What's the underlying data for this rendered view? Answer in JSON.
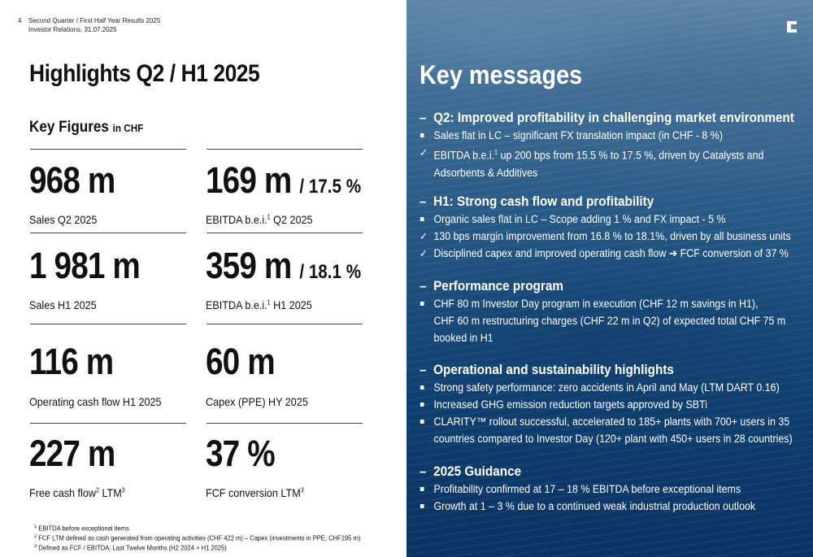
{
  "header": {
    "page_number": "4",
    "line1": "Second Quarter / First Half Year Results 2025",
    "line2": "Investor Relations, 31.07.2025"
  },
  "left": {
    "title": "Highlights Q2 / H1 2025",
    "key_figures_label": "Key Figures",
    "key_figures_unit": "in CHF",
    "figures": [
      {
        "value": "968 m",
        "pct": "",
        "caption": "Sales Q2 2025",
        "sup": "",
        "caption_after": ""
      },
      {
        "value": "169 m",
        "pct": "/ 17.5 %",
        "caption": "EBITDA b.e.i.",
        "sup": "1",
        "caption_after": " Q2 2025"
      },
      {
        "value": "1 981 m",
        "pct": "",
        "caption": "Sales H1 2025",
        "sup": "",
        "caption_after": ""
      },
      {
        "value": "359 m",
        "pct": "/ 18.1 %",
        "caption": "EBITDA b.e.i.",
        "sup": "1",
        "caption_after": "  H1 2025"
      },
      {
        "value": "116 m",
        "pct": "",
        "caption": "Operating cash flow H1 2025",
        "sup": "",
        "caption_after": ""
      },
      {
        "value": "60 m",
        "pct": "",
        "caption": "Capex (PPE) HY 2025",
        "sup": "",
        "caption_after": ""
      },
      {
        "value": "227 m",
        "pct": "",
        "caption": "Free cash flow",
        "sup": "2",
        "caption_after": " LTM",
        "sup2": "3"
      },
      {
        "value": "37 %",
        "pct": "",
        "caption": "FCF conversion LTM",
        "sup": "3",
        "caption_after": ""
      }
    ],
    "footnotes": [
      {
        "num": "1",
        "text": " EBITDA before exceptional items"
      },
      {
        "num": "2",
        "text": " FCF LTM defined as cash generated from operating activities (CHF 422 m) – Capex (investments in PPE, CHF195 m)"
      },
      {
        "num": "3",
        "text": " Defined as FCF / EBITDA; Last Twelve Months (H2 2024 + H1 2025)"
      }
    ]
  },
  "right": {
    "title": "Key messages",
    "sections": [
      {
        "title": "Q2: Improved profitability in challenging market environment",
        "items": [
          {
            "marker": "square",
            "text": "Sales flat in LC – significant FX translation impact (in CHF - 8 %)"
          },
          {
            "marker": "check",
            "text_a": "EBITDA b.e.i.",
            "sup": "1",
            "text_b": " up 200 bps from 15.5 % to 17.5 %, driven by Catalysts and",
            "cont": "Adsorbents & Additives"
          }
        ]
      },
      {
        "title": "H1: Strong cash flow and profitability",
        "items": [
          {
            "marker": "square",
            "text": "Organic sales flat in LC  – Scope adding 1 % and FX impact - 5 %"
          },
          {
            "marker": "check",
            "text": "130 bps margin improvement from 16.8 % to 18.1%, driven by all business units"
          },
          {
            "marker": "check",
            "text_a": "Disciplined capex and improved operating cash flow ",
            "arrow": "➔",
            "text_b": " FCF conversion of 37 %"
          }
        ]
      },
      {
        "title": "Performance program",
        "items": [
          {
            "marker": "square",
            "text": "CHF 80 m Investor Day program in execution (CHF 12 m savings in H1),",
            "cont": "CHF 60 m restructuring charges (CHF 22 m in Q2) of expected total CHF 75 m",
            "cont2": "booked in H1"
          }
        ]
      },
      {
        "title": "Operational and sustainability highlights",
        "items": [
          {
            "marker": "square",
            "text": "Strong safety performance: zero accidents in April and May (LTM DART 0.16)"
          },
          {
            "marker": "square",
            "text": "Increased GHG emission reduction targets approved by SBTi"
          },
          {
            "marker": "square",
            "text": "CLARITY™ rollout successful, accelerated to 185+ plants with 700+ users in 35",
            "cont": "countries compared to Investor Day (120+ plant with 450+ users in 28 countries)"
          }
        ]
      },
      {
        "title": "2025 Guidance",
        "items": [
          {
            "marker": "square",
            "text": "Profitability confirmed at 17 – 18 % EBITDA before exceptional items"
          },
          {
            "marker": "square",
            "text": "Growth at 1 – 3 % due to a continued weak industrial production outlook"
          }
        ]
      }
    ]
  },
  "icons": {
    "logo": "company-logo-icon",
    "square_bullet": "square-bullet-icon",
    "check_bullet": "checkmark-icon",
    "arrow": "arrow-right-icon"
  },
  "colors": {
    "panel_blue": "#1f4f7e",
    "text_dark": "#111111",
    "text_light": "#ffffff"
  }
}
